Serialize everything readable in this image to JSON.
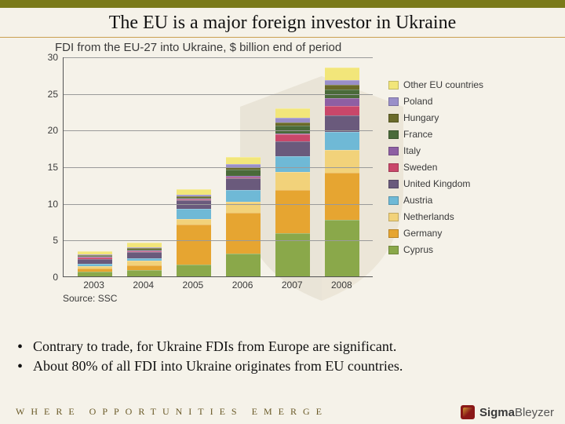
{
  "header": {
    "title": "The EU is a major foreign investor in Ukraine"
  },
  "chart": {
    "type": "stacked-bar",
    "title": "FDI from the EU-27 into Ukraine, $ billion end of period",
    "ylabel": "",
    "ylim": [
      0,
      30
    ],
    "ytick_step": 5,
    "yticks": [
      "0",
      "5",
      "10",
      "15",
      "20",
      "25",
      "30"
    ],
    "categories": [
      "2003",
      "2004",
      "2005",
      "2006",
      "2007",
      "2008"
    ],
    "series": [
      {
        "name": "Cyprus",
        "color": "#8aa84a"
      },
      {
        "name": "Germany",
        "color": "#e6a531"
      },
      {
        "name": "Netherlands",
        "color": "#f2d27a"
      },
      {
        "name": "Austria",
        "color": "#6fb9d6"
      },
      {
        "name": "United Kingdom",
        "color": "#6a5a7c"
      },
      {
        "name": "Sweden",
        "color": "#c9476a"
      },
      {
        "name": "Italy",
        "color": "#8e5fa3"
      },
      {
        "name": "France",
        "color": "#4a6a3a"
      },
      {
        "name": "Hungary",
        "color": "#6a6a2a"
      },
      {
        "name": "Poland",
        "color": "#9a8fc9"
      },
      {
        "name": "Other EU countries",
        "color": "#f2e67a"
      }
    ],
    "values": [
      [
        0.6,
        0.45,
        0.4,
        0.25,
        0.7,
        0.15,
        0.1,
        0.1,
        0.1,
        0.15,
        0.4
      ],
      [
        0.9,
        0.65,
        0.55,
        0.35,
        0.9,
        0.12,
        0.12,
        0.1,
        0.12,
        0.2,
        0.55
      ],
      [
        1.6,
        5.5,
        0.7,
        1.4,
        1.2,
        0.13,
        0.13,
        0.1,
        0.19,
        0.22,
        0.7
      ],
      [
        3.1,
        5.6,
        1.5,
        1.6,
        1.6,
        0.15,
        0.15,
        0.85,
        0.37,
        0.37,
        1.0
      ],
      [
        5.9,
        5.9,
        2.5,
        2.1,
        2.0,
        1.0,
        0.15,
        1.05,
        0.4,
        0.67,
        1.3
      ],
      [
        7.7,
        6.4,
        3.2,
        2.45,
        2.25,
        1.3,
        1.0,
        1.25,
        0.6,
        0.69,
        1.7
      ]
    ],
    "bar_width": 0.6,
    "background_color": "#f5f2e9",
    "grid_color": "#9a9a9a",
    "axis_color": "#555555",
    "label_fontsize": 12,
    "title_fontsize": 15,
    "source": "Source: SSC"
  },
  "bullets": [
    "Contrary to trade, for Ukraine FDIs from Europe are significant.",
    "About 80% of all FDI into Ukraine originates from EU countries."
  ],
  "footer": {
    "tagline": "WHERE OPPORTUNITIES EMERGE"
  },
  "brand": {
    "name_bold": "Sigma",
    "name_rest": "Bleyzer"
  }
}
